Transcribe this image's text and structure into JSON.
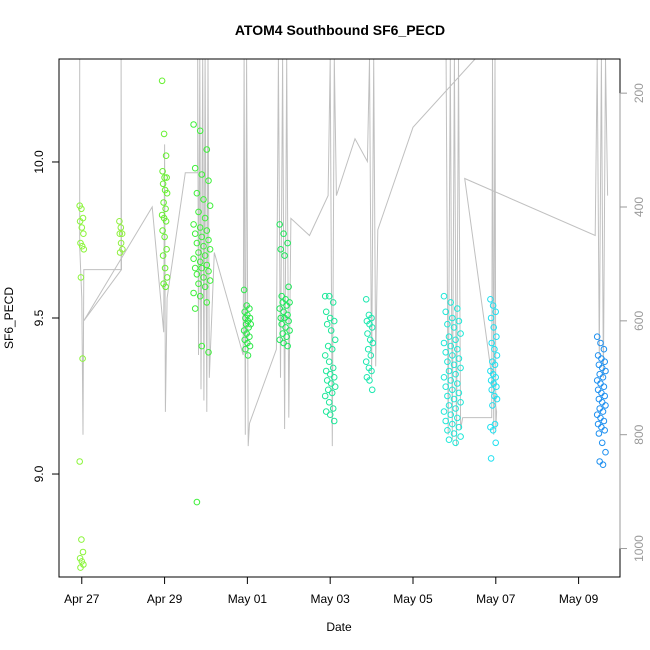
{
  "chart_data": {
    "type": "scatter",
    "title": "ATOM4 Southbound SF6_PECD",
    "xlabel": "Date",
    "ylabel": "SF6_PECD",
    "x_ticks": [
      {
        "label": "Apr 27",
        "day": 0
      },
      {
        "label": "Apr 29",
        "day": 2
      },
      {
        "label": "May 01",
        "day": 4
      },
      {
        "label": "May 03",
        "day": 6
      },
      {
        "label": "May 05",
        "day": 8
      },
      {
        "label": "May 07",
        "day": 10
      },
      {
        "label": "May 09",
        "day": 12
      }
    ],
    "xlim_days": [
      -0.55,
      13.0
    ],
    "y_ticks": [
      "9.0",
      "9.5",
      "10.0"
    ],
    "y_tick_values": [
      9.0,
      9.5,
      10.0
    ],
    "ylim": [
      8.67,
      10.33
    ],
    "y2_ticks": [
      "200",
      "400",
      "600",
      "800",
      "1000"
    ],
    "y2_tick_values": [
      200,
      400,
      600,
      800,
      1000
    ],
    "y2lim": [
      1050,
      140
    ],
    "point_clusters": [
      {
        "day": 0.0,
        "spread": 0.05,
        "color": "#8cf53c",
        "values": [
          9.86,
          9.85,
          9.82,
          9.81,
          9.79,
          9.77,
          9.74,
          9.73,
          9.72,
          9.63,
          9.37,
          9.04,
          8.79,
          8.75,
          8.73,
          8.72,
          8.71,
          8.7
        ]
      },
      {
        "day": 0.95,
        "spread": 0.04,
        "color": "#90f040",
        "values": [
          9.81,
          9.79,
          9.77,
          9.77,
          9.74,
          9.72,
          9.71
        ]
      },
      {
        "day": 2.0,
        "spread": 0.06,
        "color": "#66f030",
        "values": [
          10.26,
          10.09,
          10.02,
          9.97,
          9.95,
          9.95,
          9.93,
          9.91,
          9.9,
          9.87,
          9.85,
          9.83,
          9.82,
          9.81,
          9.78,
          9.76,
          9.72,
          9.7,
          9.66,
          9.63,
          9.61,
          9.6
        ]
      },
      {
        "day": 2.9,
        "spread": 0.2,
        "color": "#3ef03a",
        "values": [
          10.12,
          10.1,
          10.04,
          9.98,
          9.96,
          9.94,
          9.9,
          9.88,
          9.86,
          9.84,
          9.82,
          9.8,
          9.79,
          9.78,
          9.77,
          9.76,
          9.75,
          9.74,
          9.73,
          9.72,
          9.71,
          9.7,
          9.69,
          9.68,
          9.67,
          9.66,
          9.66,
          9.65,
          9.64,
          9.63,
          9.62,
          9.61,
          9.6,
          9.58,
          9.57,
          9.55,
          9.53,
          9.41,
          9.39,
          8.91
        ]
      },
      {
        "day": 4.0,
        "spread": 0.08,
        "color": "#2ee84a",
        "values": [
          9.59,
          9.54,
          9.53,
          9.52,
          9.51,
          9.5,
          9.5,
          9.49,
          9.48,
          9.48,
          9.47,
          9.46,
          9.45,
          9.44,
          9.43,
          9.42,
          9.41,
          9.4,
          9.38
        ]
      },
      {
        "day": 4.9,
        "spread": 0.12,
        "color": "#1ee85a",
        "values": [
          9.8,
          9.77,
          9.74,
          9.72,
          9.7,
          9.6,
          9.57,
          9.56,
          9.55,
          9.55,
          9.54,
          9.53,
          9.52,
          9.51,
          9.5,
          9.5,
          9.49,
          9.48,
          9.47,
          9.46,
          9.45,
          9.44,
          9.43,
          9.42,
          9.41
        ]
      },
      {
        "day": 6.0,
        "spread": 0.12,
        "color": "#1ee89a",
        "values": [
          9.57,
          9.57,
          9.55,
          9.52,
          9.5,
          9.49,
          9.48,
          9.46,
          9.43,
          9.41,
          9.4,
          9.38,
          9.36,
          9.34,
          9.33,
          9.32,
          9.31,
          9.3,
          9.29,
          9.28,
          9.27,
          9.26,
          9.25,
          9.23,
          9.21,
          9.2,
          9.19,
          9.17
        ]
      },
      {
        "day": 6.95,
        "spread": 0.08,
        "color": "#1ee8b0",
        "values": [
          9.56,
          9.51,
          9.5,
          9.49,
          9.48,
          9.47,
          9.45,
          9.43,
          9.42,
          9.4,
          9.38,
          9.36,
          9.34,
          9.33,
          9.31,
          9.3,
          9.27
        ]
      },
      {
        "day": 8.95,
        "spread": 0.2,
        "color": "#20e8d8",
        "values": [
          9.57,
          9.55,
          9.53,
          9.52,
          9.5,
          9.49,
          9.48,
          9.47,
          9.45,
          9.44,
          9.43,
          9.42,
          9.41,
          9.4,
          9.39,
          9.38,
          9.37,
          9.36,
          9.35,
          9.34,
          9.33,
          9.32,
          9.31,
          9.3,
          9.29,
          9.28,
          9.27,
          9.26,
          9.25,
          9.24,
          9.23,
          9.22,
          9.21,
          9.2,
          9.19,
          9.18,
          9.17,
          9.16,
          9.15,
          9.14,
          9.13,
          9.12,
          9.11,
          9.1
        ]
      },
      {
        "day": 9.95,
        "spread": 0.08,
        "color": "#20e0f0",
        "values": [
          9.56,
          9.54,
          9.52,
          9.5,
          9.47,
          9.44,
          9.42,
          9.4,
          9.38,
          9.36,
          9.35,
          9.33,
          9.32,
          9.31,
          9.3,
          9.29,
          9.28,
          9.27,
          9.25,
          9.24,
          9.22,
          9.16,
          9.15,
          9.14,
          9.1,
          9.05
        ]
      },
      {
        "day": 12.55,
        "spread": 0.1,
        "color": "#1e90f0",
        "values": [
          9.44,
          9.42,
          9.4,
          9.38,
          9.37,
          9.36,
          9.35,
          9.34,
          9.33,
          9.32,
          9.31,
          9.3,
          9.29,
          9.28,
          9.27,
          9.26,
          9.25,
          9.24,
          9.23,
          9.22,
          9.21,
          9.2,
          9.19,
          9.18,
          9.17,
          9.16,
          9.15,
          9.14,
          9.13,
          9.1,
          9.07,
          9.04,
          9.03
        ]
      }
    ],
    "pressure_trace": {
      "color": "#c0c0c0",
      "points": [
        [
          -0.05,
          140
        ],
        [
          -0.05,
          470
        ],
        [
          0.0,
          560
        ],
        [
          0.03,
          800
        ],
        [
          0.05,
          510
        ],
        [
          0.95,
          510
        ],
        [
          0.95,
          140
        ],
        [
          0.96,
          510
        ],
        [
          0.05,
          600
        ],
        [
          1.7,
          400
        ],
        [
          1.98,
          620
        ],
        [
          2.0,
          290
        ],
        [
          2.02,
          760
        ],
        [
          2.06,
          560
        ],
        [
          2.5,
          340
        ],
        [
          2.8,
          340
        ],
        [
          2.8,
          140
        ],
        [
          2.82,
          660
        ],
        [
          2.85,
          140
        ],
        [
          2.88,
          720
        ],
        [
          2.92,
          140
        ],
        [
          2.95,
          740
        ],
        [
          2.98,
          140
        ],
        [
          3.02,
          760
        ],
        [
          3.05,
          140
        ],
        [
          3.08,
          700
        ],
        [
          3.2,
          480
        ],
        [
          3.9,
          660
        ],
        [
          3.92,
          140
        ],
        [
          3.95,
          800
        ],
        [
          3.98,
          140
        ],
        [
          4.02,
          820
        ],
        [
          4.05,
          780
        ],
        [
          4.7,
          650
        ],
        [
          4.75,
          140
        ],
        [
          4.8,
          700
        ],
        [
          4.85,
          140
        ],
        [
          4.9,
          790
        ],
        [
          4.95,
          140
        ],
        [
          5.0,
          770
        ],
        [
          5.05,
          420
        ],
        [
          5.5,
          450
        ],
        [
          5.95,
          380
        ],
        [
          6.0,
          140
        ],
        [
          6.05,
          820
        ],
        [
          6.1,
          140
        ],
        [
          6.15,
          380
        ],
        [
          6.6,
          280
        ],
        [
          6.9,
          320
        ],
        [
          6.95,
          140
        ],
        [
          7.0,
          700
        ],
        [
          7.05,
          140
        ],
        [
          7.1,
          680
        ],
        [
          7.15,
          440
        ],
        [
          8.0,
          260
        ],
        [
          9.5,
          140
        ],
        [
          8.8,
          140
        ],
        [
          8.85,
          800
        ],
        [
          8.9,
          140
        ],
        [
          8.95,
          810
        ],
        [
          9.0,
          140
        ],
        [
          9.05,
          820
        ],
        [
          9.1,
          140
        ],
        [
          9.15,
          790
        ],
        [
          9.2,
          770
        ],
        [
          9.9,
          770
        ],
        [
          9.92,
          140
        ],
        [
          9.95,
          800
        ],
        [
          9.98,
          140
        ],
        [
          10.0,
          790
        ],
        [
          10.02,
          760
        ],
        [
          9.25,
          350
        ],
        [
          12.4,
          450
        ],
        [
          12.45,
          140
        ],
        [
          12.5,
          660
        ],
        [
          12.55,
          140
        ],
        [
          12.6,
          700
        ],
        [
          12.65,
          140
        ],
        [
          12.7,
          380
        ]
      ]
    }
  }
}
